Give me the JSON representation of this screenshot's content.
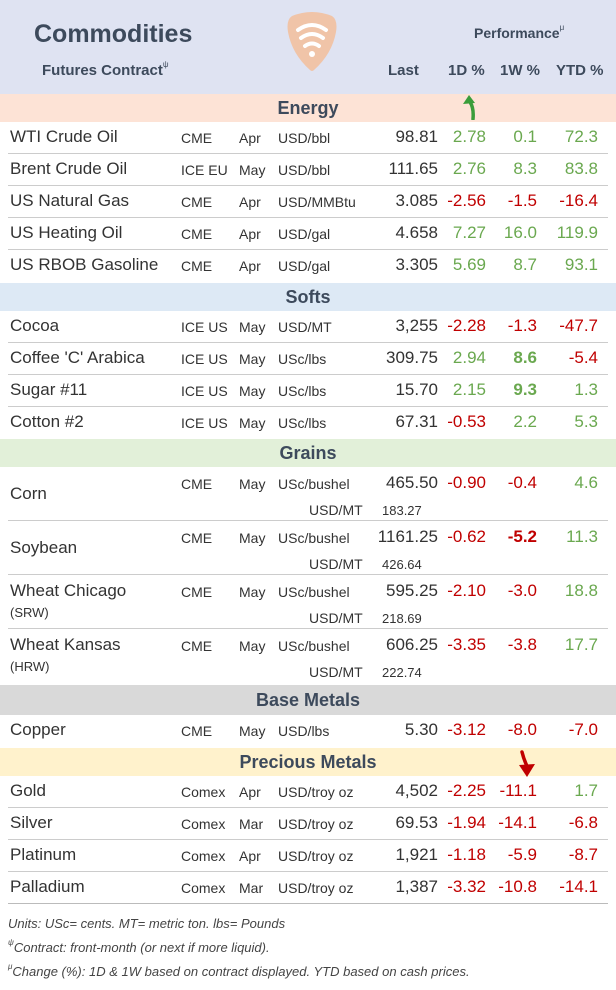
{
  "header": {
    "title": "Commodities",
    "subtitle": "Futures Contract",
    "subtitle_mark": "ψ",
    "performance": "Performance",
    "performance_mark": "μ",
    "col_last": "Last",
    "col_1d": "1D %",
    "col_1w": "1W %",
    "col_ytd": "YTD %"
  },
  "logo_icon": "wifi-signal-pick-icon",
  "colors": {
    "positive": "#6aa84f",
    "negative": "#c00000",
    "energy_bg": "#fde3d6",
    "softs_bg": "#dde9f5",
    "grains_bg": "#e2f0d9",
    "base_bg": "#d9d9d9",
    "precious_bg": "#fff2cc"
  },
  "sections": {
    "energy": "Energy",
    "softs": "Softs",
    "grains": "Grains",
    "base_metals": "Base Metals",
    "precious_metals": "Precious Metals"
  },
  "energy": [
    {
      "name": "WTI Crude Oil",
      "exchange": "CME",
      "month": "Apr",
      "unit": "USD/bbl",
      "last": "98.81",
      "d1": "2.78",
      "w1": "0.1",
      "ytd": "72.3"
    },
    {
      "name": "Brent Crude Oil",
      "exchange": "ICE EU",
      "month": "May",
      "unit": "USD/bbl",
      "last": "111.65",
      "d1": "2.76",
      "w1": "8.3",
      "ytd": "83.8"
    },
    {
      "name": "US Natural Gas",
      "exchange": "CME",
      "month": "Apr",
      "unit": "USD/MMBtu",
      "last": "3.085",
      "d1": "-2.56",
      "w1": "-1.5",
      "ytd": "-16.4"
    },
    {
      "name": "US Heating Oil",
      "exchange": "CME",
      "month": "Apr",
      "unit": "USD/gal",
      "last": "4.658",
      "d1": "7.27",
      "w1": "16.0",
      "ytd": "119.9"
    },
    {
      "name": "US RBOB Gasoline",
      "exchange": "CME",
      "month": "Apr",
      "unit": "USD/gal",
      "last": "3.305",
      "d1": "5.69",
      "w1": "8.7",
      "ytd": "93.1"
    }
  ],
  "softs": [
    {
      "name": "Cocoa",
      "exchange": "ICE US",
      "month": "May",
      "unit": "USD/MT",
      "last": "3,255",
      "d1": "-2.28",
      "w1": "-1.3",
      "ytd": "-47.7"
    },
    {
      "name": "Coffee 'C' Arabica",
      "exchange": "ICE US",
      "month": "May",
      "unit": "USc/lbs",
      "last": "309.75",
      "d1": "2.94",
      "w1": "8.6",
      "ytd": "-5.4"
    },
    {
      "name": "Sugar #11",
      "exchange": "ICE US",
      "month": "May",
      "unit": "USc/lbs",
      "last": "15.70",
      "d1": "2.15",
      "w1": "9.3",
      "ytd": "1.3"
    },
    {
      "name": "Cotton #2",
      "exchange": "ICE US",
      "month": "May",
      "unit": "USc/lbs",
      "last": "67.31",
      "d1": "-0.53",
      "w1": "2.2",
      "ytd": "5.3"
    }
  ],
  "grains": [
    {
      "name": "Corn",
      "name2": "",
      "exchange": "CME",
      "month": "May",
      "unit": "USc/bushel",
      "last": "465.50",
      "d1": "-0.90",
      "w1": "-0.4",
      "ytd": "4.6",
      "unit2": "USD/MT",
      "last2": "183.27"
    },
    {
      "name": "Soybean",
      "name2": "",
      "exchange": "CME",
      "month": "May",
      "unit": "USc/bushel",
      "last": "1161.25",
      "d1": "-0.62",
      "w1": "-5.2",
      "ytd": "11.3",
      "unit2": "USD/MT",
      "last2": "426.64"
    },
    {
      "name": "Wheat Chicago",
      "name2": "(SRW)",
      "exchange": "CME",
      "month": "May",
      "unit": "USc/bushel",
      "last": "595.25",
      "d1": "-2.10",
      "w1": "-3.0",
      "ytd": "18.8",
      "unit2": "USD/MT",
      "last2": "218.69"
    },
    {
      "name": "Wheat Kansas",
      "name2": "(HRW)",
      "exchange": "CME",
      "month": "May",
      "unit": "USc/bushel",
      "last": "606.25",
      "d1": "-3.35",
      "w1": "-3.8",
      "ytd": "17.7",
      "unit2": "USD/MT",
      "last2": "222.74"
    }
  ],
  "base_metals": [
    {
      "name": "Copper",
      "exchange": "CME",
      "month": "May",
      "unit": "USD/lbs",
      "last": "5.30",
      "d1": "-3.12",
      "w1": "-8.0",
      "ytd": "-7.0"
    }
  ],
  "precious_metals": [
    {
      "name": "Gold",
      "exchange": "Comex",
      "month": "Apr",
      "unit": "USD/troy oz",
      "last": "4,502",
      "d1": "-2.25",
      "w1": "-11.1",
      "ytd": "1.7"
    },
    {
      "name": "Silver",
      "exchange": "Comex",
      "month": "Mar",
      "unit": "USD/troy oz",
      "last": "69.53",
      "d1": "-1.94",
      "w1": "-14.1",
      "ytd": "-6.8"
    },
    {
      "name": "Platinum",
      "exchange": "Comex",
      "month": "Apr",
      "unit": "USD/troy oz",
      "last": "1,921",
      "d1": "-1.18",
      "w1": "-5.9",
      "ytd": "-8.7"
    },
    {
      "name": "Palladium",
      "exchange": "Comex",
      "month": "Mar",
      "unit": "USD/troy oz",
      "last": "1,387",
      "d1": "-3.32",
      "w1": "-10.8",
      "ytd": "-14.1"
    }
  ],
  "footnotes": {
    "units": "Units: USc= cents.  MT= metric ton.  lbs= Pounds",
    "contract_mark": "ψ",
    "contract": "Contract: front-month (or next if more liquid).",
    "change_mark": "μ",
    "change": "Change (%): 1D & 1W based on contract displayed. YTD based on cash prices."
  }
}
